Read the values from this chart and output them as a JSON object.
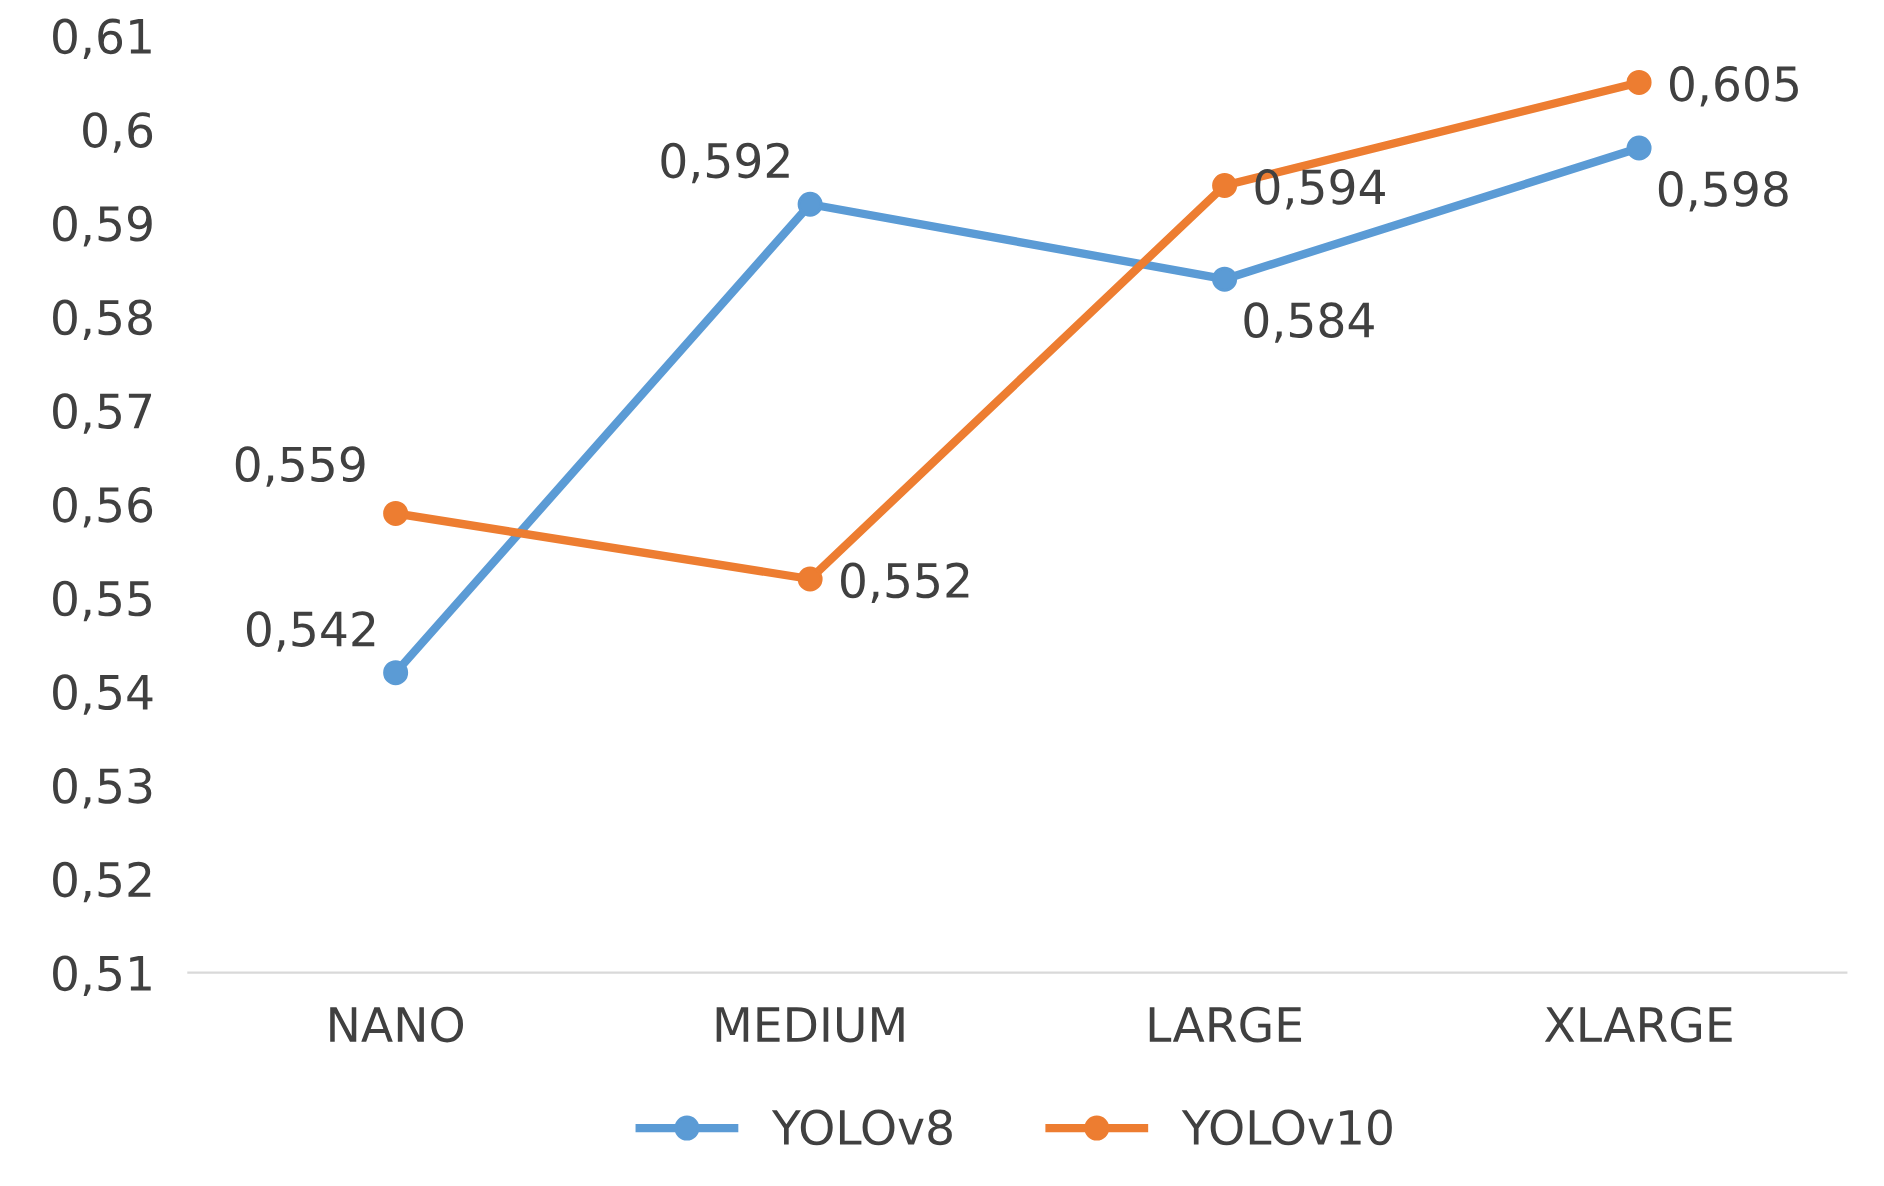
{
  "chart_data": {
    "type": "line",
    "categories": [
      "NANO",
      "MEDIUM",
      "LARGE",
      "XLARGE"
    ],
    "series": [
      {
        "name": "YOLOv8",
        "color": "#5b9bd5",
        "values": [
          0.542,
          0.592,
          0.584,
          0.598
        ],
        "value_labels": [
          "0,542",
          "0,592",
          "0,584",
          "0,598"
        ]
      },
      {
        "name": "YOLOv10",
        "color": "#ed7d31",
        "values": [
          0.559,
          0.552,
          0.594,
          0.605
        ],
        "value_labels": [
          "0,559",
          "0,552",
          "0,594",
          "0,605"
        ]
      }
    ],
    "ylim": [
      0.51,
      0.61
    ],
    "yticks": [
      {
        "value": 0.51,
        "label": "0,51"
      },
      {
        "value": 0.52,
        "label": "0,52"
      },
      {
        "value": 0.53,
        "label": "0,53"
      },
      {
        "value": 0.54,
        "label": "0,54"
      },
      {
        "value": 0.55,
        "label": "0,55"
      },
      {
        "value": 0.56,
        "label": "0,56"
      },
      {
        "value": 0.57,
        "label": "0,57"
      },
      {
        "value": 0.58,
        "label": "0,58"
      },
      {
        "value": 0.59,
        "label": "0,59"
      },
      {
        "value": 0.6,
        "label": "0,6"
      },
      {
        "value": 0.61,
        "label": "0,61"
      }
    ],
    "grid": false,
    "legend": "bottom",
    "marker": "circle",
    "line_style": "solid"
  }
}
